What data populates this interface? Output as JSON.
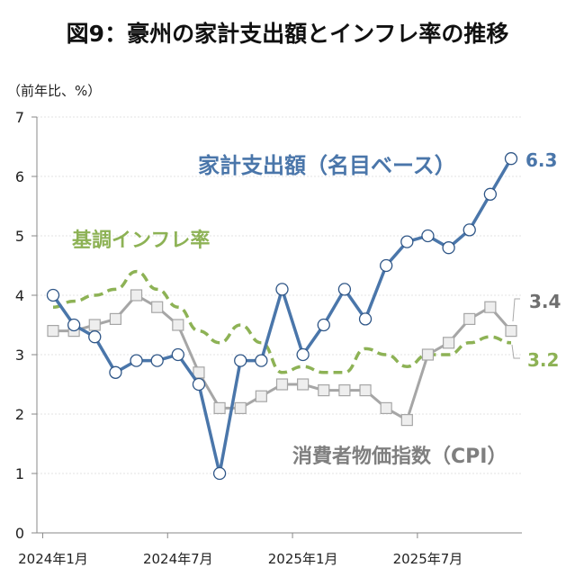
{
  "chart_data": {
    "type": "line",
    "title": "図9：豪州の家計支出額とインフレ率の推移",
    "ylabel": "（前年比、%）",
    "ylim": [
      0,
      7
    ],
    "yticks": [
      "0",
      "1",
      "2",
      "3",
      "4",
      "5",
      "6",
      "7"
    ],
    "grid": true,
    "x": [
      "2024-01",
      "2024-02",
      "2024-03",
      "2024-04",
      "2024-05",
      "2024-06",
      "2024-07",
      "2024-08",
      "2024-09",
      "2024-10",
      "2024-11",
      "2024-12",
      "2025-01",
      "2025-02",
      "2025-03",
      "2025-04",
      "2025-05",
      "2025-06",
      "2025-07",
      "2025-08",
      "2025-09",
      "2025-10",
      "2025-11"
    ],
    "xtick_labels": [
      {
        "index": 0,
        "label": "2024年1月"
      },
      {
        "index": 6,
        "label": "2024年7月"
      },
      {
        "index": 12,
        "label": "2025年1月"
      },
      {
        "index": 18,
        "label": "2025年7月"
      }
    ],
    "series": [
      {
        "name": "家計支出額（名目ベース）",
        "color": "#4a76aa",
        "style": "solid-circle",
        "values": [
          4.0,
          3.5,
          3.3,
          2.7,
          2.9,
          2.9,
          3.0,
          2.5,
          1.0,
          2.9,
          2.9,
          4.1,
          3.0,
          3.5,
          4.1,
          3.6,
          4.5,
          4.9,
          5.0,
          4.8,
          5.1,
          5.7,
          6.3
        ],
        "end_label": "6.3"
      },
      {
        "name": "消費者物価指数（CPI）",
        "color": "#a6a6a6",
        "label_color": "#7f7f7f",
        "style": "solid-square",
        "values": [
          3.4,
          3.4,
          3.5,
          3.6,
          4.0,
          3.8,
          3.5,
          2.7,
          2.1,
          2.1,
          2.3,
          2.5,
          2.5,
          2.4,
          2.4,
          2.4,
          2.1,
          1.9,
          3.0,
          3.2,
          3.6,
          3.8,
          3.4
        ],
        "end_label": "3.4"
      },
      {
        "name": "基調インフレ率",
        "color": "#8db255",
        "style": "dashed",
        "values": [
          3.8,
          3.9,
          4.0,
          4.1,
          4.4,
          4.1,
          3.8,
          3.4,
          3.2,
          3.5,
          3.2,
          2.7,
          2.8,
          2.7,
          2.7,
          3.1,
          3.0,
          2.8,
          3.0,
          3.0,
          3.2,
          3.3,
          3.2
        ],
        "end_label": "3.2"
      }
    ]
  }
}
